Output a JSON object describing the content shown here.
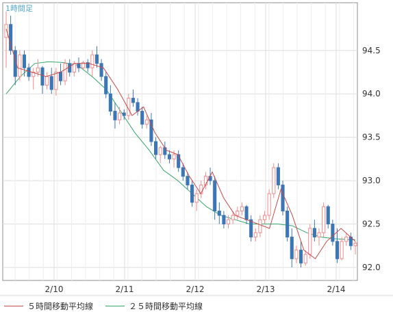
{
  "chart_data": {
    "type": "candlestick",
    "title": "1時間足",
    "y_ticks": [
      "92.0",
      "92.5",
      "93.0",
      "93.5",
      "94.0",
      "94.5"
    ],
    "ylim": [
      91.85,
      95.05
    ],
    "x_ticks": [
      "2/10",
      "2/11",
      "2/12",
      "2/13",
      "2/14"
    ],
    "grid": true,
    "legend_placement": "bottom",
    "colors": {
      "up": "#ef8a8a",
      "down": "#3d76b4",
      "ma5": "#c44a4a",
      "ma25": "#33a66b",
      "title": "#55a6d2",
      "grid": "#dedede",
      "axis": "#777777"
    },
    "series": [
      {
        "name": "５時間移動平均線",
        "color": "#c44a4a",
        "x": [
          0,
          4,
          9,
          14,
          19,
          24,
          29,
          34,
          39,
          44,
          48,
          52,
          56,
          60,
          64,
          68,
          72,
          76,
          80,
          84,
          88,
          92,
          96,
          100,
          104,
          108,
          112,
          117,
          122
        ],
        "y": [
          94.75,
          94.3,
          94.25,
          94.2,
          94.25,
          94.35,
          94.35,
          94.3,
          94.05,
          93.75,
          93.85,
          93.55,
          93.35,
          93.3,
          93.05,
          92.85,
          93.1,
          92.8,
          92.6,
          92.55,
          92.5,
          92.45,
          92.9,
          92.6,
          92.2,
          92.1,
          92.3,
          92.45,
          92.3
        ]
      },
      {
        "name": "２５時間移動平均線",
        "color": "#33a66b",
        "x": [
          0,
          5,
          10,
          15,
          20,
          25,
          30,
          35,
          40,
          45,
          50,
          55,
          60,
          65,
          70,
          75,
          80,
          85,
          90,
          95,
          100,
          105,
          110,
          115,
          120,
          122
        ],
        "y": [
          94.0,
          94.2,
          94.35,
          94.37,
          94.36,
          94.33,
          94.2,
          94.05,
          93.8,
          93.55,
          93.35,
          93.12,
          93.0,
          92.85,
          92.7,
          92.6,
          92.55,
          92.5,
          92.5,
          92.5,
          92.48,
          92.4,
          92.35,
          92.33,
          92.32,
          92.32
        ]
      }
    ],
    "candles": [
      {
        "o": 94.65,
        "h": 94.95,
        "l": 94.3,
        "c": 94.8
      },
      {
        "o": 94.8,
        "h": 94.9,
        "l": 94.45,
        "c": 94.5
      },
      {
        "o": 94.5,
        "h": 94.55,
        "l": 94.1,
        "c": 94.2
      },
      {
        "o": 94.2,
        "h": 94.5,
        "l": 94.15,
        "c": 94.45
      },
      {
        "o": 94.45,
        "h": 94.5,
        "l": 94.2,
        "c": 94.3
      },
      {
        "o": 94.3,
        "h": 94.35,
        "l": 94.15,
        "c": 94.2
      },
      {
        "o": 94.2,
        "h": 94.3,
        "l": 94.05,
        "c": 94.25
      },
      {
        "o": 94.25,
        "h": 94.4,
        "l": 94.2,
        "c": 94.3
      },
      {
        "o": 94.3,
        "h": 94.32,
        "l": 94.0,
        "c": 94.1
      },
      {
        "o": 94.1,
        "h": 94.25,
        "l": 94.05,
        "c": 94.2
      },
      {
        "o": 94.2,
        "h": 94.3,
        "l": 94.0,
        "c": 94.05
      },
      {
        "o": 94.05,
        "h": 94.3,
        "l": 93.98,
        "c": 94.25
      },
      {
        "o": 94.25,
        "h": 94.35,
        "l": 94.1,
        "c": 94.15
      },
      {
        "o": 94.15,
        "h": 94.4,
        "l": 94.1,
        "c": 94.35
      },
      {
        "o": 94.35,
        "h": 94.4,
        "l": 94.2,
        "c": 94.25
      },
      {
        "o": 94.25,
        "h": 94.38,
        "l": 94.2,
        "c": 94.35
      },
      {
        "o": 94.35,
        "h": 94.42,
        "l": 94.25,
        "c": 94.3
      },
      {
        "o": 94.3,
        "h": 94.38,
        "l": 94.28,
        "c": 94.36
      },
      {
        "o": 94.36,
        "h": 94.4,
        "l": 94.25,
        "c": 94.3
      },
      {
        "o": 94.3,
        "h": 94.5,
        "l": 94.2,
        "c": 94.45
      },
      {
        "o": 94.45,
        "h": 94.55,
        "l": 94.3,
        "c": 94.35
      },
      {
        "o": 94.35,
        "h": 94.4,
        "l": 94.15,
        "c": 94.2
      },
      {
        "o": 94.2,
        "h": 94.25,
        "l": 93.95,
        "c": 94.0
      },
      {
        "o": 94.0,
        "h": 94.1,
        "l": 93.75,
        "c": 93.8
      },
      {
        "o": 93.8,
        "h": 93.9,
        "l": 93.6,
        "c": 93.7
      },
      {
        "o": 93.7,
        "h": 93.85,
        "l": 93.65,
        "c": 93.78
      },
      {
        "o": 93.78,
        "h": 93.82,
        "l": 93.7,
        "c": 93.75
      },
      {
        "o": 93.75,
        "h": 94.0,
        "l": 93.7,
        "c": 93.95
      },
      {
        "o": 93.95,
        "h": 94.05,
        "l": 93.85,
        "c": 93.9
      },
      {
        "o": 93.9,
        "h": 93.95,
        "l": 93.75,
        "c": 93.8
      },
      {
        "o": 93.8,
        "h": 93.85,
        "l": 93.6,
        "c": 93.65
      },
      {
        "o": 93.65,
        "h": 93.75,
        "l": 93.6,
        "c": 93.7
      },
      {
        "o": 93.7,
        "h": 93.78,
        "l": 93.4,
        "c": 93.45
      },
      {
        "o": 93.45,
        "h": 93.5,
        "l": 93.25,
        "c": 93.3
      },
      {
        "o": 93.3,
        "h": 93.4,
        "l": 93.2,
        "c": 93.38
      },
      {
        "o": 93.38,
        "h": 93.45,
        "l": 93.25,
        "c": 93.3
      },
      {
        "o": 93.3,
        "h": 93.35,
        "l": 93.2,
        "c": 93.25
      },
      {
        "o": 93.25,
        "h": 93.35,
        "l": 93.15,
        "c": 93.3
      },
      {
        "o": 93.3,
        "h": 93.35,
        "l": 93.1,
        "c": 93.15
      },
      {
        "o": 93.15,
        "h": 93.2,
        "l": 93.0,
        "c": 93.05
      },
      {
        "o": 93.05,
        "h": 93.1,
        "l": 92.9,
        "c": 92.95
      },
      {
        "o": 92.95,
        "h": 93.0,
        "l": 92.7,
        "c": 92.75
      },
      {
        "o": 92.75,
        "h": 92.9,
        "l": 92.65,
        "c": 92.85
      },
      {
        "o": 92.85,
        "h": 93.0,
        "l": 92.8,
        "c": 92.95
      },
      {
        "o": 92.95,
        "h": 93.1,
        "l": 92.9,
        "c": 93.05
      },
      {
        "o": 93.05,
        "h": 93.15,
        "l": 92.95,
        "c": 93.0
      },
      {
        "o": 93.0,
        "h": 93.05,
        "l": 92.55,
        "c": 92.65
      },
      {
        "o": 92.65,
        "h": 92.75,
        "l": 92.5,
        "c": 92.6
      },
      {
        "o": 92.6,
        "h": 92.65,
        "l": 92.45,
        "c": 92.5
      },
      {
        "o": 92.5,
        "h": 92.6,
        "l": 92.45,
        "c": 92.55
      },
      {
        "o": 92.55,
        "h": 92.65,
        "l": 92.5,
        "c": 92.6
      },
      {
        "o": 92.6,
        "h": 92.7,
        "l": 92.55,
        "c": 92.65
      },
      {
        "o": 92.65,
        "h": 92.75,
        "l": 92.6,
        "c": 92.7
      },
      {
        "o": 92.7,
        "h": 92.72,
        "l": 92.5,
        "c": 92.55
      },
      {
        "o": 92.55,
        "h": 92.6,
        "l": 92.3,
        "c": 92.35
      },
      {
        "o": 92.35,
        "h": 92.45,
        "l": 92.3,
        "c": 92.4
      },
      {
        "o": 92.4,
        "h": 92.6,
        "l": 92.35,
        "c": 92.55
      },
      {
        "o": 92.55,
        "h": 92.65,
        "l": 92.5,
        "c": 92.6
      },
      {
        "o": 92.6,
        "h": 92.9,
        "l": 92.55,
        "c": 92.85
      },
      {
        "o": 92.85,
        "h": 93.2,
        "l": 92.8,
        "c": 93.15
      },
      {
        "o": 93.15,
        "h": 93.2,
        "l": 92.9,
        "c": 92.95
      },
      {
        "o": 92.95,
        "h": 93.0,
        "l": 92.6,
        "c": 92.65
      },
      {
        "o": 92.65,
        "h": 92.7,
        "l": 92.3,
        "c": 92.35
      },
      {
        "o": 92.35,
        "h": 92.45,
        "l": 92.0,
        "c": 92.1
      },
      {
        "o": 92.1,
        "h": 92.25,
        "l": 92.05,
        "c": 92.2
      },
      {
        "o": 92.2,
        "h": 92.3,
        "l": 92.0,
        "c": 92.05
      },
      {
        "o": 92.05,
        "h": 92.2,
        "l": 92.02,
        "c": 92.15
      },
      {
        "o": 92.15,
        "h": 92.5,
        "l": 92.1,
        "c": 92.45
      },
      {
        "o": 92.45,
        "h": 92.55,
        "l": 92.3,
        "c": 92.35
      },
      {
        "o": 92.35,
        "h": 92.45,
        "l": 92.25,
        "c": 92.4
      },
      {
        "o": 92.4,
        "h": 92.75,
        "l": 92.35,
        "c": 92.7
      },
      {
        "o": 92.7,
        "h": 92.72,
        "l": 92.45,
        "c": 92.5
      },
      {
        "o": 92.5,
        "h": 92.55,
        "l": 92.25,
        "c": 92.3
      },
      {
        "o": 92.3,
        "h": 92.45,
        "l": 92.05,
        "c": 92.1
      },
      {
        "o": 92.1,
        "h": 92.35,
        "l": 92.08,
        "c": 92.3
      },
      {
        "o": 92.3,
        "h": 92.4,
        "l": 92.25,
        "c": 92.35
      },
      {
        "o": 92.35,
        "h": 92.4,
        "l": 92.2,
        "c": 92.25
      },
      {
        "o": 92.25,
        "h": 92.3,
        "l": 92.15,
        "c": 92.28
      }
    ]
  },
  "legend": {
    "ma5": "５時間移動平均線",
    "ma25": "２５時間移動平均線"
  }
}
